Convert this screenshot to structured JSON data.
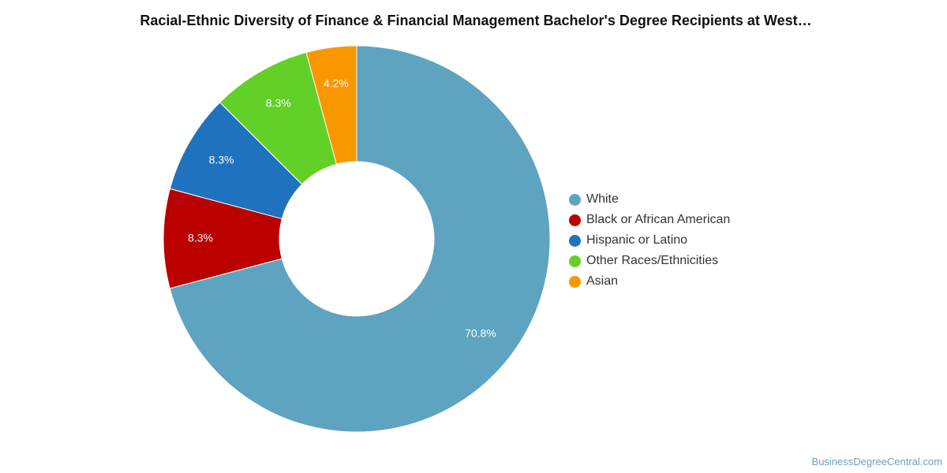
{
  "chart_data": {
    "type": "pie",
    "title": "Racial-Ethnic Diversity of Finance & Financial Management Bachelor's Degree Recipients at West…",
    "categories": [
      "White",
      "Black or African American",
      "Hispanic or Latino",
      "Other Races/Ethnicities",
      "Asian"
    ],
    "values": [
      70.8,
      8.3,
      8.3,
      8.3,
      4.2
    ],
    "value_labels": [
      "70.8%",
      "8.3%",
      "8.3%",
      "8.3%",
      "4.2%"
    ],
    "colors": [
      "#5ea3bf",
      "#bb0000",
      "#1f72bd",
      "#62d026",
      "#f99700"
    ],
    "donut": true,
    "legend_position": "right"
  },
  "source": "BusinessDegreeCentral.com"
}
